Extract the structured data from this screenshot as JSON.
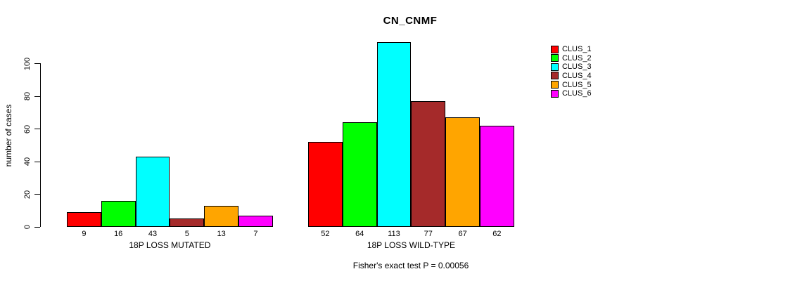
{
  "title": "CN_CNMF",
  "footnote": "Fisher's exact test P = 0.00056",
  "y_axis": {
    "label": "number of cases",
    "ticks": [
      0,
      20,
      40,
      60,
      80,
      100
    ]
  },
  "legend": {
    "position": "top-right",
    "items": [
      {
        "label": "CLUS_1",
        "color": "#ff0000"
      },
      {
        "label": "CLUS_2",
        "color": "#00ff00"
      },
      {
        "label": "CLUS_3",
        "color": "#00ffff"
      },
      {
        "label": "CLUS_4",
        "color": "#a52a2a"
      },
      {
        "label": "CLUS_5",
        "color": "#ffa500"
      },
      {
        "label": "CLUS_6",
        "color": "#ff00ff"
      }
    ]
  },
  "chart_data": {
    "type": "bar",
    "title": "CN_CNMF",
    "xlabel": "",
    "ylabel": "number of cases",
    "yticks": [
      0,
      20,
      40,
      60,
      80,
      100
    ],
    "ylim": [
      0,
      116
    ],
    "grid": false,
    "legend_position": "top-right",
    "clusters": [
      {
        "name": "CLUS_1",
        "color": "#ff0000"
      },
      {
        "name": "CLUS_2",
        "color": "#00ff00"
      },
      {
        "name": "CLUS_3",
        "color": "#00ffff"
      },
      {
        "name": "CLUS_4",
        "color": "#a52a2a"
      },
      {
        "name": "CLUS_5",
        "color": "#ffa500"
      },
      {
        "name": "CLUS_6",
        "color": "#ff00ff"
      }
    ],
    "groups": [
      {
        "label": "18P LOSS MUTATED",
        "values": [
          9,
          16,
          43,
          5,
          13,
          7
        ]
      },
      {
        "label": "18P LOSS WILD-TYPE",
        "values": [
          52,
          64,
          113,
          77,
          67,
          62
        ]
      }
    ],
    "footnote": "Fisher's exact test P = 0.00056"
  }
}
